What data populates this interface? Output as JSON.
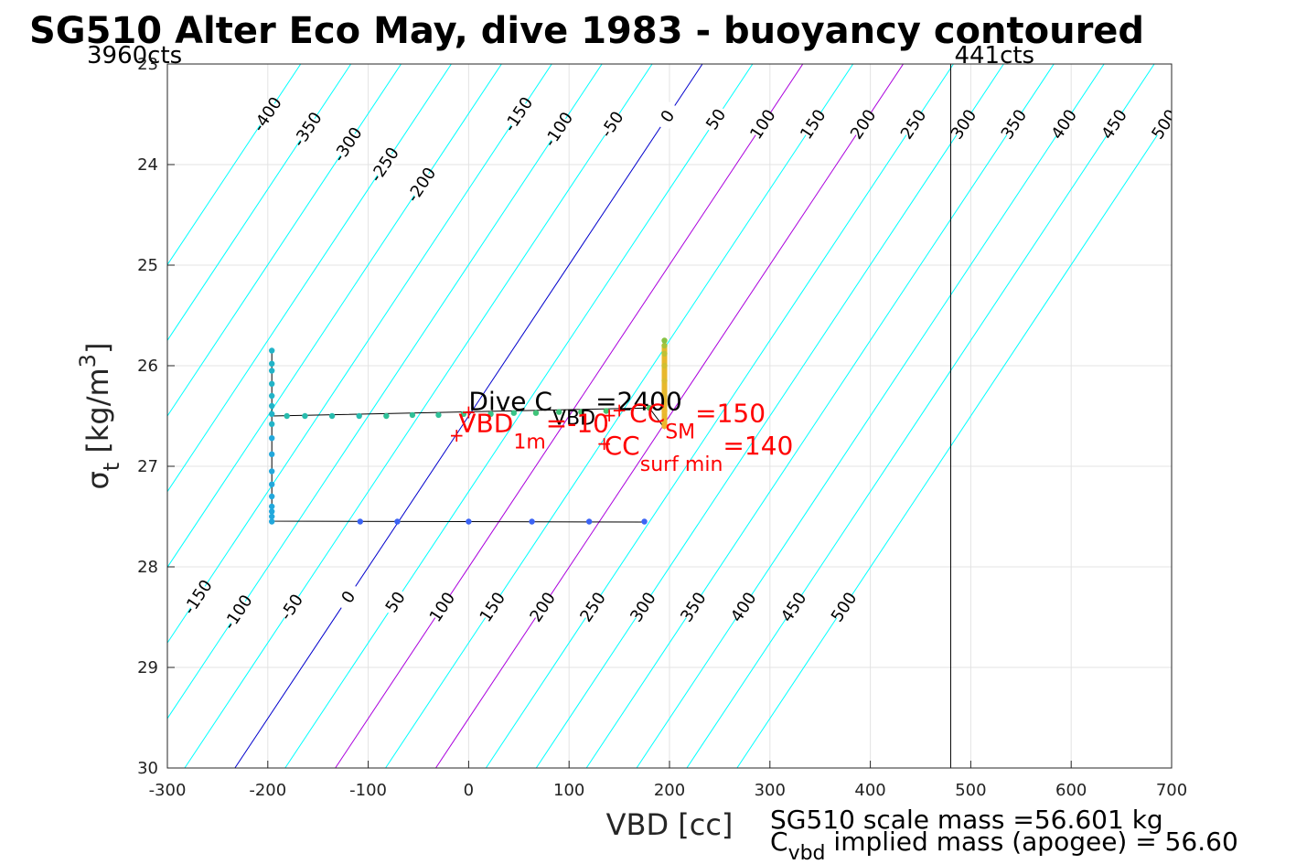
{
  "chart_data": {
    "type": "line",
    "title": "SG510 Alter Eco May, dive 1983 - buoyancy contoured",
    "xlabel": "VBD [cc]",
    "ylabel": {
      "base": "σ",
      "sub": "t",
      "rest": " [kg/m",
      "sup": "3",
      "close": "]"
    },
    "xlim": [
      -300,
      700
    ],
    "ylim": [
      23,
      30
    ],
    "y_reversed": true,
    "grid": true,
    "x_ticks": [
      -300,
      -200,
      -100,
      0,
      100,
      200,
      300,
      400,
      500,
      600,
      700
    ],
    "x_tick_labels": [
      "-300",
      "-200",
      "-100",
      "0",
      "100",
      "200",
      "300",
      "400",
      "500",
      "600",
      "700"
    ],
    "y_ticks": [
      23,
      24,
      25,
      26,
      27,
      28,
      29,
      30
    ],
    "y_tick_labels": [
      "23",
      "24",
      "25",
      "26",
      "27",
      "28",
      "29",
      "30"
    ],
    "contours": {
      "slope_vbd_per_sigma": 66.5,
      "ref_sigma": 26.5,
      "levels": [
        -400,
        -350,
        -300,
        -250,
        -200,
        -150,
        -100,
        -50,
        0,
        50,
        100,
        150,
        200,
        250,
        300,
        350,
        400,
        450,
        500
      ],
      "top_labels": [
        {
          "level": -400,
          "text": "-400",
          "sigma": 23.5
        },
        {
          "level": -350,
          "text": "-350",
          "sigma": 23.65
        },
        {
          "level": -300,
          "text": "-300",
          "sigma": 23.8
        },
        {
          "level": -250,
          "text": "-250",
          "sigma": 24.0
        },
        {
          "level": -200,
          "text": "-200",
          "sigma": 24.2
        },
        {
          "level": -150,
          "text": "-150",
          "sigma": 23.5
        },
        {
          "level": -100,
          "text": "-100",
          "sigma": 23.65
        },
        {
          "level": -50,
          "text": "-50",
          "sigma": 23.6
        },
        {
          "level": 0,
          "text": "0",
          "sigma": 23.52
        },
        {
          "level": 50,
          "text": "50",
          "sigma": 23.55
        },
        {
          "level": 100,
          "text": "100",
          "sigma": 23.6
        },
        {
          "level": 150,
          "text": "150",
          "sigma": 23.6
        },
        {
          "level": 200,
          "text": "200",
          "sigma": 23.6
        },
        {
          "level": 250,
          "text": "250",
          "sigma": 23.6
        },
        {
          "level": 300,
          "text": "300",
          "sigma": 23.6
        },
        {
          "level": 350,
          "text": "350",
          "sigma": 23.6
        },
        {
          "level": 400,
          "text": "400",
          "sigma": 23.6
        },
        {
          "level": 450,
          "text": "450",
          "sigma": 23.6
        },
        {
          "level": 500,
          "text": "500",
          "sigma": 23.6
        }
      ],
      "bottom_labels": [
        {
          "level": -150,
          "text": "-150",
          "sigma": 28.3
        },
        {
          "level": -100,
          "text": "-100",
          "sigma": 28.45
        },
        {
          "level": -50,
          "text": "-50",
          "sigma": 28.4
        },
        {
          "level": 0,
          "text": "0",
          "sigma": 28.3
        },
        {
          "level": 50,
          "text": "50",
          "sigma": 28.35
        },
        {
          "level": 100,
          "text": "100",
          "sigma": 28.4
        },
        {
          "level": 150,
          "text": "150",
          "sigma": 28.4
        },
        {
          "level": 200,
          "text": "200",
          "sigma": 28.4
        },
        {
          "level": 250,
          "text": "250",
          "sigma": 28.4
        },
        {
          "level": 300,
          "text": "300",
          "sigma": 28.4
        },
        {
          "level": 350,
          "text": "350",
          "sigma": 28.4
        },
        {
          "level": 400,
          "text": "400",
          "sigma": 28.4
        },
        {
          "level": 450,
          "text": "450",
          "sigma": 28.4
        },
        {
          "level": 500,
          "text": "500",
          "sigma": 28.4
        }
      ],
      "colors": {
        "default": "#00ffff",
        "zero": "#0000cc",
        "highlight": "#aa00dd"
      },
      "highlight_levels": [
        100,
        200
      ]
    },
    "count_lines": [
      {
        "x": 480,
        "label": "441cts"
      }
    ],
    "count_labels_left": "3960cts",
    "series": [
      {
        "dots": [
          {
            "x": 175,
            "y": 27.55,
            "c": "#3c64f5"
          },
          {
            "x": 120,
            "y": 27.55,
            "c": "#3c64f5"
          },
          {
            "x": 63,
            "y": 27.55,
            "c": "#3c64f5"
          },
          {
            "x": 0,
            "y": 27.55,
            "c": "#3c64f5"
          },
          {
            "x": -71,
            "y": 27.55,
            "c": "#3c64f5"
          },
          {
            "x": -108,
            "y": 27.55,
            "c": "#3c64f5"
          },
          {
            "x": -196,
            "y": 27.55,
            "c": "#22a8dc"
          },
          {
            "x": -196,
            "y": 27.5,
            "c": "#22a8dc"
          },
          {
            "x": -196,
            "y": 27.45,
            "c": "#22a8dc"
          },
          {
            "x": -196,
            "y": 27.4,
            "c": "#22a8dc"
          },
          {
            "x": -196,
            "y": 27.3,
            "c": "#22a8dc"
          },
          {
            "x": -196,
            "y": 27.18,
            "c": "#22a8dc"
          },
          {
            "x": -196,
            "y": 27.05,
            "c": "#22a8dc"
          },
          {
            "x": -196,
            "y": 26.88,
            "c": "#22a8dc"
          },
          {
            "x": -196,
            "y": 26.72,
            "c": "#22a8dc"
          },
          {
            "x": -196,
            "y": 26.58,
            "c": "#22b4c8"
          },
          {
            "x": -196,
            "y": 26.48,
            "c": "#22b4c8"
          },
          {
            "x": -196,
            "y": 26.4,
            "c": "#22b4c8"
          },
          {
            "x": -196,
            "y": 26.3,
            "c": "#22b4c8"
          },
          {
            "x": -196,
            "y": 26.18,
            "c": "#22b4c8"
          },
          {
            "x": -196,
            "y": 26.05,
            "c": "#22b4c8"
          },
          {
            "x": -196,
            "y": 25.98,
            "c": "#22b4c8"
          },
          {
            "x": -196,
            "y": 25.85,
            "c": "#22b4c8"
          },
          {
            "x": -181,
            "y": 26.5,
            "c": "#28bcae"
          },
          {
            "x": -163,
            "y": 26.5,
            "c": "#28bcae"
          },
          {
            "x": -136,
            "y": 26.5,
            "c": "#28bcae"
          },
          {
            "x": -109,
            "y": 26.5,
            "c": "#28bcae"
          },
          {
            "x": -82,
            "y": 26.5,
            "c": "#30c098"
          },
          {
            "x": -56,
            "y": 26.49,
            "c": "#30c098"
          },
          {
            "x": -30,
            "y": 26.49,
            "c": "#30c098"
          },
          {
            "x": -5,
            "y": 26.48,
            "c": "#38c488"
          },
          {
            "x": 22,
            "y": 26.48,
            "c": "#38c488"
          },
          {
            "x": 45,
            "y": 26.47,
            "c": "#38c488"
          },
          {
            "x": 67,
            "y": 26.47,
            "c": "#40c47a"
          },
          {
            "x": 90,
            "y": 26.46,
            "c": "#40c47a"
          },
          {
            "x": 112,
            "y": 26.46,
            "c": "#48c46c"
          },
          {
            "x": 137,
            "y": 26.45,
            "c": "#48c46c"
          },
          {
            "x": 180,
            "y": 26.42,
            "c": "#50c460"
          },
          {
            "x": 195,
            "y": 26.6,
            "c": "#f0b42c"
          },
          {
            "x": 195,
            "y": 26.45,
            "c": "#ecb830"
          },
          {
            "x": 195,
            "y": 26.3,
            "c": "#e4ba30"
          },
          {
            "x": 195,
            "y": 26.15,
            "c": "#dcbc30"
          },
          {
            "x": 195,
            "y": 26.0,
            "c": "#d2be30"
          },
          {
            "x": 195,
            "y": 25.88,
            "c": "#c0c034"
          },
          {
            "x": 195,
            "y": 25.8,
            "c": "#a8c23a"
          },
          {
            "x": 195,
            "y": 25.75,
            "c": "#88c244"
          }
        ],
        "path": [
          [
            175,
            27.555
          ],
          [
            -196,
            27.545
          ],
          [
            -196,
            25.85
          ],
          [
            -196,
            26.5
          ],
          [
            180,
            26.42
          ],
          [
            195,
            26.62
          ],
          [
            195,
            25.75
          ]
        ]
      }
    ],
    "annotations": {
      "dive_c_vbd": {
        "prefix": "Dive C",
        "sub": "VBD",
        "suffix": "=2400",
        "x": 0,
        "y": 26.44
      },
      "vbd_1m": {
        "prefix": "VBD",
        "sub": "1m",
        "suffix": "=-10",
        "x": -10,
        "y": 26.66
      },
      "cc_sm": {
        "prefix": "CC",
        "sub": "SM",
        "suffix": "=150",
        "x": 160,
        "y": 26.56
      },
      "cc_surf_min": {
        "prefix": "CC",
        "sub": "surf min",
        "suffix": "=140",
        "x": 135,
        "y": 26.88
      },
      "markers": [
        {
          "x": -12,
          "y": 26.7,
          "symbol": "+",
          "color": "#ff0000"
        },
        {
          "x": 0,
          "y": 26.47,
          "symbol": "+",
          "color": "#ff0000"
        },
        {
          "x": 140,
          "y": 26.5,
          "symbol": "+",
          "color": "#ff0000"
        },
        {
          "x": 150,
          "y": 26.45,
          "symbol": "+",
          "color": "#ff0000"
        },
        {
          "x": 135,
          "y": 26.78,
          "symbol": "+",
          "color": "#ff0000"
        }
      ]
    }
  },
  "footer": {
    "line1": "SG510 scale mass =56.601 kg",
    "line2_prefix": "C",
    "line2_sub": "vbd",
    "line2_rest": " implied mass (apogee) = 56.60"
  }
}
